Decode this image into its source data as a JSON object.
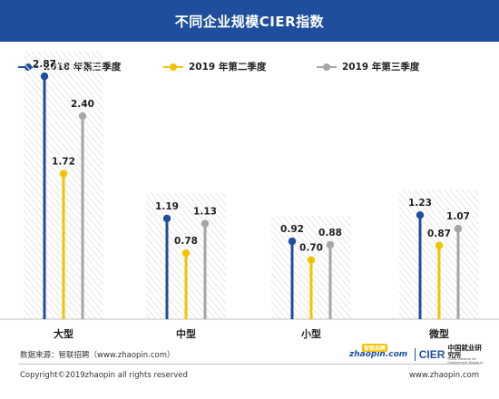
{
  "header": {
    "title": "不同企业规模CIER指数"
  },
  "colors": {
    "header_bg": "#1f4f9c",
    "hatch": "#e6e6e6"
  },
  "legend": [
    {
      "label": "2018 年第三季度",
      "color": "#1f4f9c"
    },
    {
      "label": "2019 年第二季度",
      "color": "#f2c300"
    },
    {
      "label": "2019 年第三季度",
      "color": "#a6a6a6"
    }
  ],
  "chart_data": {
    "type": "bar",
    "categories": [
      "大型",
      "中型",
      "小型",
      "微型"
    ],
    "series": [
      {
        "name": "2018 年第三季度",
        "color": "#1f4f9c",
        "values": [
          2.87,
          1.19,
          0.92,
          1.23
        ]
      },
      {
        "name": "2019 年第二季度",
        "color": "#f2c300",
        "values": [
          1.72,
          0.78,
          0.7,
          0.87
        ]
      },
      {
        "name": "2019 年第三季度",
        "color": "#a6a6a6",
        "values": [
          2.4,
          1.13,
          0.88,
          1.07
        ]
      }
    ],
    "value_labels": [
      [
        "2.87",
        "1.19",
        "0.92",
        "1.23"
      ],
      [
        "1.72",
        "0.78",
        "0.70",
        "0.87"
      ],
      [
        "2.40",
        "1.13",
        "0.88",
        "1.07"
      ]
    ],
    "ylim": [
      0,
      3.0
    ],
    "grid": false
  },
  "footer": {
    "source": "数据来源：智联招聘（www.zhaopin.com）",
    "copyright": "Copyright©2019zhaopin all rights reserved",
    "url": "www.zhaopin.com",
    "zhaopin_logo_text": "zhaopin.com",
    "zhaopin_badge_text": "智联招聘",
    "cier_logo_text": "CIER",
    "cier_name_cn": "中国就业研究所",
    "cier_name_en": "China Institute for Employment Research"
  }
}
